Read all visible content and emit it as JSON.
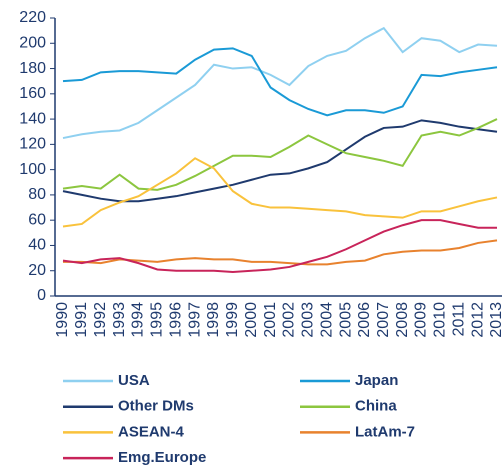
{
  "chart_data": {
    "type": "line",
    "categories": [
      "1990",
      "1991",
      "1992",
      "1993",
      "1994",
      "1995",
      "1996",
      "1997",
      "1998",
      "1999",
      "2000",
      "2001",
      "2002",
      "2003",
      "2004",
      "2005",
      "2006",
      "2007",
      "2008",
      "2009",
      "2010",
      "2011",
      "2012",
      "2013"
    ],
    "series": [
      {
        "name": "USA",
        "color": "#8fd0f0",
        "values": [
          125,
          128,
          130,
          131,
          137,
          147,
          157,
          167,
          183,
          180,
          181,
          175,
          167,
          182,
          190,
          194,
          204,
          212,
          193,
          204,
          202,
          193,
          199,
          198
        ]
      },
      {
        "name": "Japan",
        "color": "#1a9ad6",
        "values": [
          170,
          171,
          177,
          178,
          178,
          177,
          176,
          187,
          195,
          196,
          190,
          165,
          155,
          148,
          143,
          147,
          147,
          145,
          150,
          175,
          174,
          177,
          179,
          181
        ]
      },
      {
        "name": "Other DMs",
        "color": "#1f3a6e",
        "values": [
          83,
          80,
          77,
          75,
          75,
          77,
          79,
          82,
          85,
          88,
          92,
          96,
          97,
          101,
          106,
          116,
          126,
          133,
          134,
          139,
          137,
          134,
          132,
          130
        ]
      },
      {
        "name": "China",
        "color": "#8cc63f",
        "values": [
          85,
          87,
          85,
          96,
          85,
          84,
          88,
          95,
          103,
          111,
          111,
          110,
          118,
          127,
          120,
          113,
          110,
          107,
          103,
          127,
          130,
          127,
          133,
          140
        ]
      },
      {
        "name": "ASEAN-4",
        "color": "#f9c23c",
        "values": [
          55,
          57,
          68,
          74,
          79,
          88,
          97,
          109,
          101,
          83,
          73,
          70,
          70,
          69,
          68,
          67,
          64,
          63,
          62,
          67,
          67,
          71,
          75,
          78
        ]
      },
      {
        "name": "LatAm-7",
        "color": "#e8822e",
        "values": [
          27,
          27,
          26,
          29,
          28,
          27,
          29,
          30,
          29,
          29,
          27,
          27,
          26,
          25,
          25,
          27,
          28,
          33,
          35,
          36,
          36,
          38,
          42,
          44
        ]
      },
      {
        "name": "Emg.Europe",
        "color": "#c8245a",
        "values": [
          28,
          26,
          29,
          30,
          26,
          21,
          20,
          20,
          20,
          19,
          20,
          21,
          23,
          27,
          31,
          37,
          44,
          51,
          56,
          60,
          60,
          57,
          54,
          54
        ]
      }
    ],
    "ylim": [
      0,
      220
    ],
    "yticks": [
      0,
      20,
      40,
      60,
      80,
      100,
      120,
      140,
      160,
      180,
      200,
      220
    ]
  }
}
